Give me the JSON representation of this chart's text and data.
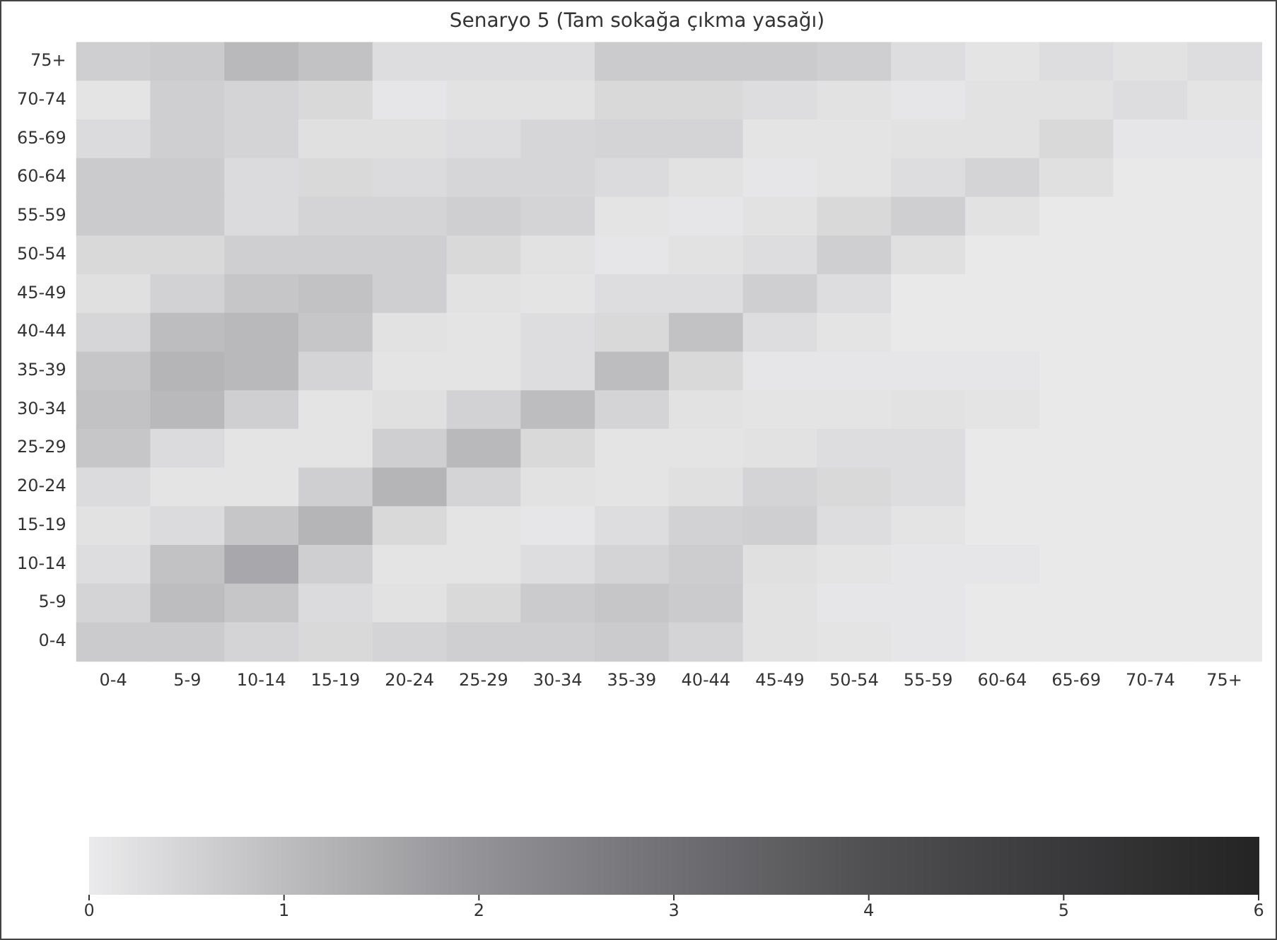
{
  "chart_data": {
    "type": "heatmap",
    "title": "Senaryo 5 (Tam sokağa çıkma yasağı)",
    "categories": [
      "0-4",
      "5-9",
      "10-14",
      "15-19",
      "20-24",
      "25-29",
      "30-34",
      "35-39",
      "40-44",
      "45-49",
      "50-54",
      "55-59",
      "60-64",
      "65-69",
      "70-74",
      "75+"
    ],
    "y_categories": [
      "75+",
      "70-74",
      "65-69",
      "60-64",
      "55-59",
      "50-54",
      "45-49",
      "40-44",
      "35-39",
      "30-34",
      "25-29",
      "20-24",
      "15-19",
      "10-14",
      "5-9",
      "0-4"
    ],
    "cells": [
      [
        0.6,
        0.7,
        1.1,
        0.9,
        0.3,
        0.3,
        0.3,
        0.7,
        0.7,
        0.7,
        0.6,
        0.3,
        0.15,
        0.3,
        0.2,
        0.3
      ],
      [
        0.15,
        0.6,
        0.5,
        0.4,
        0.1,
        0.2,
        0.2,
        0.4,
        0.4,
        0.3,
        0.2,
        0.1,
        0.2,
        0.2,
        0.3,
        0.15
      ],
      [
        0.35,
        0.6,
        0.5,
        0.25,
        0.25,
        0.3,
        0.45,
        0.5,
        0.5,
        0.15,
        0.15,
        0.2,
        0.2,
        0.4,
        0.1,
        0.1
      ],
      [
        0.7,
        0.7,
        0.35,
        0.4,
        0.35,
        0.45,
        0.45,
        0.35,
        0.2,
        0.1,
        0.15,
        0.3,
        0.5,
        0.25,
        0.05,
        0.05
      ],
      [
        0.7,
        0.7,
        0.35,
        0.5,
        0.5,
        0.6,
        0.5,
        0.15,
        0.1,
        0.2,
        0.4,
        0.6,
        0.2,
        0.05,
        0.05,
        0.05
      ],
      [
        0.4,
        0.4,
        0.6,
        0.6,
        0.6,
        0.4,
        0.2,
        0.1,
        0.2,
        0.3,
        0.6,
        0.25,
        0.05,
        0.05,
        0.05,
        0.05
      ],
      [
        0.25,
        0.55,
        0.8,
        0.9,
        0.6,
        0.2,
        0.15,
        0.3,
        0.3,
        0.6,
        0.3,
        0.05,
        0.05,
        0.05,
        0.05,
        0.05
      ],
      [
        0.45,
        1.0,
        1.1,
        0.8,
        0.2,
        0.15,
        0.3,
        0.4,
        0.9,
        0.3,
        0.15,
        0.05,
        0.05,
        0.05,
        0.05,
        0.05
      ],
      [
        0.8,
        1.2,
        1.1,
        0.5,
        0.15,
        0.15,
        0.3,
        1.0,
        0.4,
        0.1,
        0.1,
        0.1,
        0.1,
        0.05,
        0.05,
        0.05
      ],
      [
        0.9,
        1.1,
        0.6,
        0.15,
        0.25,
        0.55,
        1.0,
        0.5,
        0.2,
        0.15,
        0.15,
        0.2,
        0.15,
        0.05,
        0.05,
        0.05
      ],
      [
        0.8,
        0.35,
        0.15,
        0.15,
        0.6,
        1.1,
        0.4,
        0.15,
        0.15,
        0.2,
        0.3,
        0.3,
        0.05,
        0.05,
        0.05,
        0.05
      ],
      [
        0.35,
        0.15,
        0.15,
        0.6,
        1.2,
        0.5,
        0.2,
        0.15,
        0.25,
        0.5,
        0.4,
        0.3,
        0.05,
        0.05,
        0.05,
        0.05
      ],
      [
        0.2,
        0.35,
        0.8,
        1.2,
        0.4,
        0.15,
        0.1,
        0.3,
        0.55,
        0.6,
        0.3,
        0.15,
        0.05,
        0.05,
        0.05,
        0.05
      ],
      [
        0.3,
        0.9,
        1.5,
        0.6,
        0.15,
        0.15,
        0.3,
        0.5,
        0.65,
        0.25,
        0.15,
        0.1,
        0.1,
        0.05,
        0.05,
        0.05
      ],
      [
        0.5,
        1.0,
        0.8,
        0.35,
        0.2,
        0.4,
        0.7,
        0.8,
        0.7,
        0.2,
        0.1,
        0.1,
        0.05,
        0.05,
        0.05,
        0.05
      ],
      [
        0.7,
        0.7,
        0.5,
        0.4,
        0.5,
        0.6,
        0.6,
        0.7,
        0.5,
        0.2,
        0.15,
        0.1,
        0.05,
        0.05,
        0.05,
        0.05
      ]
    ],
    "clim": [
      0,
      6
    ],
    "cticks": [
      0,
      1,
      2,
      3,
      4,
      5,
      6
    ]
  }
}
